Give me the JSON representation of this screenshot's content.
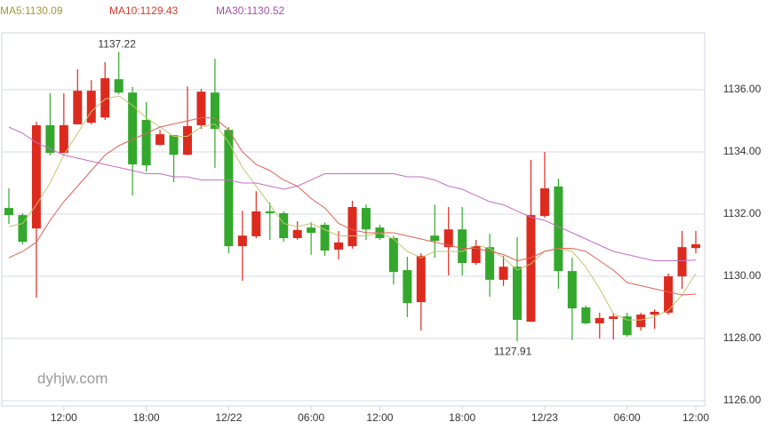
{
  "chart_data": {
    "type": "candlestick",
    "watermark": "dyhjw.com",
    "up_color": "#dd2a1f",
    "down_color": "#33a82c",
    "categories": [
      null,
      null,
      null,
      null,
      "12:00",
      null,
      null,
      null,
      null,
      null,
      "18:00",
      null,
      null,
      null,
      null,
      null,
      "12/22",
      null,
      null,
      null,
      null,
      null,
      "06:00",
      null,
      null,
      null,
      null,
      "12:00",
      null,
      null,
      null,
      null,
      null,
      "18:00",
      null,
      null,
      null,
      null,
      null,
      "12/23",
      null,
      null,
      null,
      null,
      null,
      "06:00",
      null,
      null,
      null,
      null,
      "12:00"
    ],
    "open": [
      1132.2,
      1131.97,
      1131.54,
      1134.86,
      1133.97,
      1134.89,
      1134.94,
      1135.11,
      1136.34,
      1135.91,
      1135.03,
      1134.23,
      1134.54,
      1133.91,
      1134.86,
      1135.91,
      1134.71,
      1130.97,
      1131.29,
      1132.09,
      1132.03,
      1131.23,
      1131.57,
      1131.66,
      1130.86,
      1130.97,
      1132.2,
      1131.57,
      1131.23,
      1130.2,
      1129.17,
      1131.31,
      1130.94,
      1131.51,
      1130.43,
      1130.94,
      1129.89,
      1130.31,
      1128.54,
      1131.94,
      1132.89,
      1130.17,
      1129.0,
      1128.49,
      1128.63,
      1128.71,
      1128.37,
      1128.77,
      1128.83,
      1130.0,
      1130.91
    ],
    "high": [
      1132.83,
      1132.03,
      1134.97,
      1135.89,
      1135.89,
      1136.66,
      1136.31,
      1136.89,
      1137.22,
      1136.09,
      1135.6,
      1134.71,
      1134.54,
      1136.11,
      1136.03,
      1137.0,
      1134.8,
      1132.11,
      1132.74,
      1132.37,
      1132.09,
      1131.77,
      1131.74,
      1131.74,
      1131.46,
      1132.43,
      1132.31,
      1131.66,
      1131.31,
      1130.63,
      1130.74,
      1132.31,
      1132.23,
      1132.23,
      1131.17,
      1131.37,
      1130.66,
      1131.26,
      1133.74,
      1134.0,
      1133.14,
      1130.6,
      1129.06,
      1128.83,
      1128.83,
      1128.83,
      1128.83,
      1128.94,
      1130.09,
      1131.46,
      1131.46
    ],
    "low": [
      1131.69,
      1131.03,
      1129.31,
      1133.89,
      1133.97,
      1134.89,
      1134.89,
      1135.03,
      1135.86,
      1132.6,
      1133.37,
      1134.2,
      1133.03,
      1133.89,
      1134.74,
      1133.49,
      1130.74,
      1129.86,
      1131.23,
      1131.17,
      1131.11,
      1131.17,
      1130.69,
      1130.66,
      1130.54,
      1130.89,
      1131.17,
      1131.17,
      1129.74,
      1128.69,
      1128.26,
      1130.6,
      1130.03,
      1130.03,
      1130.37,
      1129.34,
      1129.69,
      1127.91,
      1128.54,
      1131.89,
      1129.6,
      1127.95,
      1128.46,
      1128.0,
      1127.97,
      1128.06,
      1128.26,
      1128.31,
      1128.77,
      1129.6,
      1130.74
    ],
    "close": [
      1131.97,
      1131.11,
      1134.86,
      1133.97,
      1134.86,
      1135.97,
      1135.97,
      1136.37,
      1135.91,
      1133.6,
      1133.57,
      1134.57,
      1133.91,
      1134.83,
      1135.94,
      1134.74,
      1130.97,
      1131.31,
      1132.09,
      1132.03,
      1131.23,
      1131.49,
      1131.4,
      1130.83,
      1131.09,
      1132.23,
      1131.51,
      1131.23,
      1130.14,
      1129.14,
      1130.66,
      1131.14,
      1131.51,
      1130.43,
      1130.97,
      1129.89,
      1130.31,
      1128.6,
      1131.97,
      1132.83,
      1130.17,
      1128.97,
      1128.49,
      1128.66,
      1128.71,
      1128.11,
      1128.77,
      1128.86,
      1130.0,
      1130.94,
      1131.03
    ],
    "series": [
      {
        "name": "MA5:1130.09",
        "color": "#c4c470",
        "text_color": "#a09a3a",
        "values": [
          1131.6,
          1131.7,
          1132.3,
          1133.0,
          1133.9,
          1134.6,
          1135.3,
          1135.7,
          1135.8,
          1135.5,
          1135.1,
          1134.8,
          1134.5,
          1134.5,
          1134.8,
          1134.9,
          1134.3,
          1133.5,
          1132.9,
          1132.3,
          1131.7,
          1131.6,
          1131.7,
          1131.5,
          1131.3,
          1131.3,
          1131.3,
          1131.4,
          1131.2,
          1130.8,
          1130.6,
          1130.8,
          1130.8,
          1130.8,
          1131.0,
          1130.9,
          1130.6,
          1130.2,
          1130.4,
          1130.8,
          1130.9,
          1130.8,
          1130.3,
          1129.6,
          1128.8,
          1128.6,
          1128.6,
          1128.7,
          1128.9,
          1129.4,
          1130.09
        ]
      },
      {
        "name": "MA10:1129.43",
        "color": "#e06258",
        "text_color": "#d23a2c",
        "values": [
          1130.6,
          1130.8,
          1131.1,
          1131.8,
          1132.4,
          1132.9,
          1133.4,
          1133.9,
          1134.2,
          1134.4,
          1134.6,
          1134.8,
          1134.9,
          1135.0,
          1135.1,
          1135.1,
          1134.7,
          1134.0,
          1133.6,
          1133.4,
          1133.1,
          1132.9,
          1132.5,
          1132.2,
          1131.7,
          1131.5,
          1131.4,
          1131.4,
          1131.4,
          1131.3,
          1131.2,
          1131.1,
          1131.0,
          1130.9,
          1130.9,
          1130.8,
          1130.7,
          1130.5,
          1130.6,
          1130.8,
          1130.9,
          1130.9,
          1130.8,
          1130.5,
          1130.2,
          1129.8,
          1129.7,
          1129.6,
          1129.5,
          1129.4,
          1129.43
        ]
      },
      {
        "name": "MA30:1130.52",
        "color": "#c070c4",
        "text_color": "#a450a8",
        "values": [
          1134.8,
          1134.6,
          1134.3,
          1134.1,
          1133.9,
          1133.8,
          1133.7,
          1133.6,
          1133.5,
          1133.4,
          1133.3,
          1133.3,
          1133.2,
          1133.2,
          1133.1,
          1133.1,
          1133.1,
          1133.0,
          1133.0,
          1132.9,
          1132.8,
          1132.9,
          1133.1,
          1133.3,
          1133.3,
          1133.3,
          1133.3,
          1133.3,
          1133.3,
          1133.2,
          1133.2,
          1133.1,
          1132.9,
          1132.8,
          1132.6,
          1132.4,
          1132.3,
          1132.1,
          1131.9,
          1131.8,
          1131.6,
          1131.4,
          1131.2,
          1131.0,
          1130.8,
          1130.7,
          1130.6,
          1130.5,
          1130.5,
          1130.5,
          1130.52
        ]
      }
    ],
    "ylim": [
      1125.83,
      1137.83
    ],
    "yticks": [
      {
        "value": 1126,
        "label": "1126.00"
      },
      {
        "value": 1128,
        "label": "1128.00"
      },
      {
        "value": 1130,
        "label": "1130.00"
      },
      {
        "value": 1132,
        "label": "1132.00"
      },
      {
        "value": 1134,
        "label": "1134.00"
      },
      {
        "value": 1136,
        "label": "1136.00"
      }
    ],
    "grid": true
  }
}
